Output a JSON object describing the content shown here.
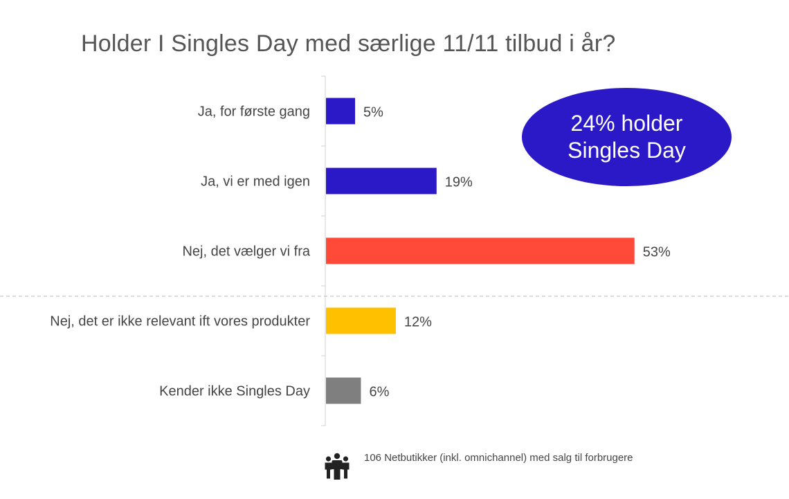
{
  "chart_data": {
    "type": "bar",
    "orientation": "horizontal",
    "title": "Holder I Singles Day med særlige 11/11 tilbud i år?",
    "categories": [
      "Ja, for første gang",
      "Ja, vi er med igen",
      "Nej, det vælger vi fra",
      "Nej, det er ikke relevant ift vores produkter",
      "Kender ikke Singles Day"
    ],
    "values": [
      5,
      19,
      53,
      12,
      6
    ],
    "value_labels": [
      "5%",
      "19%",
      "53%",
      "12%",
      "6%"
    ],
    "colors": [
      "#2b19c7",
      "#2b19c7",
      "#ff4a3a",
      "#ffc000",
      "#7f7f7f"
    ],
    "unit": "%",
    "grid": false,
    "legend": "none"
  },
  "callout": {
    "line1": "24% holder",
    "line2": "Singles Day",
    "color": "#2b19c7",
    "text_color": "#ffffff"
  },
  "footnote": {
    "icon": "people-group-icon",
    "text": "106 Netbutikker (inkl. omnichannel) med salg til forbrugere"
  },
  "colors": {
    "axis": "#d0d0d0",
    "divider": "#b8b8b8",
    "text": "#444444",
    "title": "#555555"
  }
}
